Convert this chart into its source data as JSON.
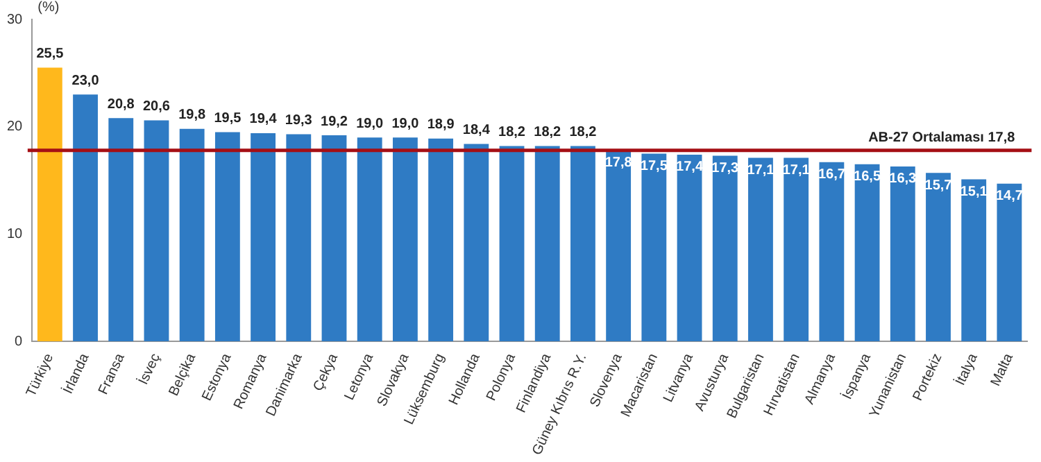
{
  "chart_data": {
    "type": "bar",
    "ylabel": "(%)",
    "categories": [
      "Türkiye",
      "İrlanda",
      "Fransa",
      "İsveç",
      "Belçika",
      "Estonya",
      "Romanya",
      "Danimarka",
      "Çekya",
      "Letonya",
      "Slovakya",
      "Lüksemburg",
      "Hollanda",
      "Polonya",
      "Finlandiya",
      "Güney Kıbrıs R.Y.",
      "Slovenya",
      "Macaristan",
      "Litvanya",
      "Avusturya",
      "Bulgaristan",
      "Hırvatistan",
      "Almanya",
      "İspanya",
      "Yunanistan",
      "Portekiz",
      "İtalya",
      "Malta"
    ],
    "values": [
      25.5,
      23.0,
      20.8,
      20.6,
      19.8,
      19.5,
      19.4,
      19.3,
      19.2,
      19.0,
      19.0,
      18.9,
      18.4,
      18.2,
      18.2,
      18.2,
      17.8,
      17.5,
      17.4,
      17.3,
      17.1,
      17.1,
      16.7,
      16.5,
      16.3,
      15.7,
      15.1,
      14.7
    ],
    "value_labels": [
      "25,5",
      "23,0",
      "20,8",
      "20,6",
      "19,8",
      "19,5",
      "19,4",
      "19,3",
      "19,2",
      "19,0",
      "19,0",
      "18,9",
      "18,4",
      "18,2",
      "18,2",
      "18,2",
      "17,8",
      "17,5",
      "17,4",
      "17,3",
      "17,1",
      "17,1",
      "16,7",
      "16,5",
      "16,3",
      "15,7",
      "15,1",
      "14,7"
    ],
    "colors": [
      "#ffb81c",
      "#2f7bc4",
      "#2f7bc4",
      "#2f7bc4",
      "#2f7bc4",
      "#2f7bc4",
      "#2f7bc4",
      "#2f7bc4",
      "#2f7bc4",
      "#2f7bc4",
      "#2f7bc4",
      "#2f7bc4",
      "#2f7bc4",
      "#2f7bc4",
      "#2f7bc4",
      "#2f7bc4",
      "#2f7bc4",
      "#2f7bc4",
      "#2f7bc4",
      "#2f7bc4",
      "#2f7bc4",
      "#2f7bc4",
      "#2f7bc4",
      "#2f7bc4",
      "#2f7bc4",
      "#2f7bc4",
      "#2f7bc4",
      "#2f7bc4"
    ],
    "ylim": [
      0,
      30
    ],
    "yticks": [
      0,
      10,
      20,
      30
    ],
    "grid": false,
    "legend": false,
    "ref_lines": [
      {
        "axis": "y",
        "value": 17.8,
        "label": "AB-27 Ortalaması 17,8",
        "color": "#a50f15"
      }
    ]
  }
}
